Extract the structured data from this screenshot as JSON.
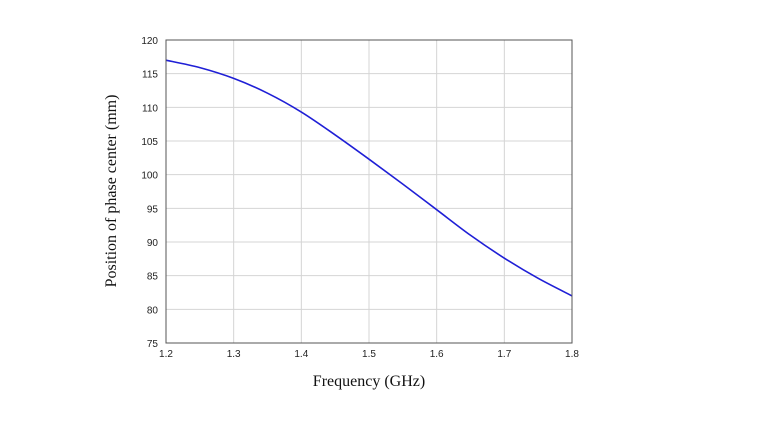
{
  "chart_data": {
    "type": "line",
    "xlabel": "Frequency (GHz)",
    "ylabel": "Position of phase center (mm)",
    "xlim": [
      1.2,
      1.8
    ],
    "ylim": [
      75,
      120
    ],
    "x_ticks": [
      1.2,
      1.3,
      1.4,
      1.5,
      1.6,
      1.7,
      1.8
    ],
    "x_tick_labels": [
      "1.2",
      "1.3",
      "1.4",
      "1.5",
      "1.6",
      "1.7",
      "1.8"
    ],
    "y_ticks": [
      75,
      80,
      85,
      90,
      95,
      100,
      105,
      110,
      115,
      120
    ],
    "y_tick_labels": [
      "75",
      "80",
      "85",
      "90",
      "95",
      "100",
      "105",
      "110",
      "115",
      "120"
    ],
    "grid": true,
    "series": [
      {
        "color": "#1f1fd6",
        "x": [
          1.2,
          1.25,
          1.3,
          1.35,
          1.4,
          1.45,
          1.5,
          1.55,
          1.6,
          1.65,
          1.7,
          1.75,
          1.8
        ],
        "y": [
          117,
          115.9,
          114.3,
          112.1,
          109.3,
          105.9,
          102.3,
          98.6,
          94.8,
          91.0,
          87.6,
          84.6,
          82.0
        ]
      }
    ]
  }
}
